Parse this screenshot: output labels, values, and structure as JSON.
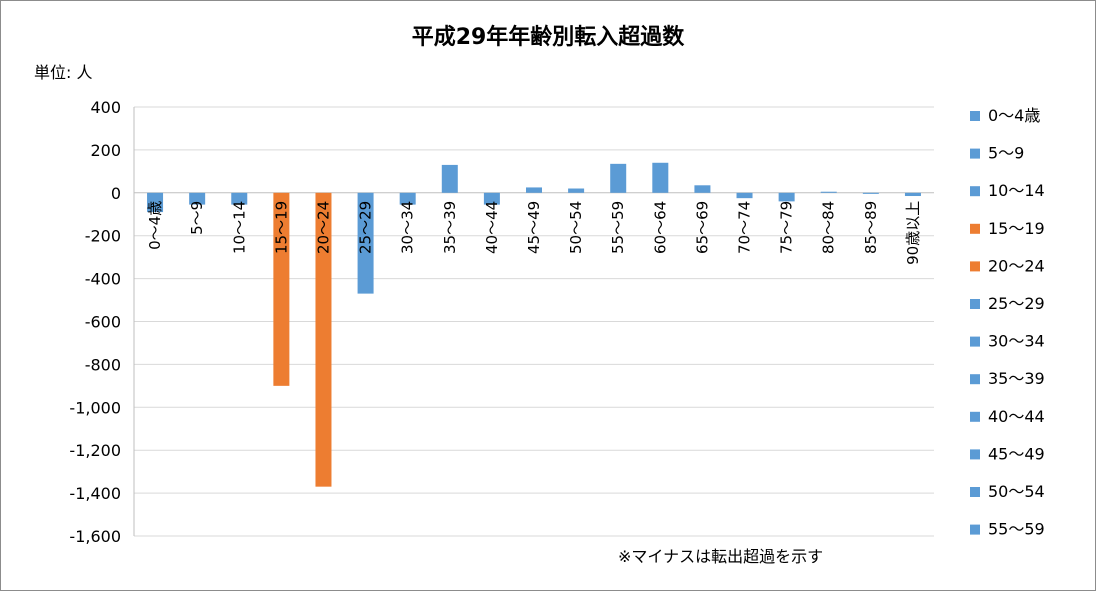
{
  "chart_data": {
    "type": "bar",
    "title": "平成29年年齢別転入超過数",
    "unit_label": "単位: 人",
    "note": "※マイナスは転出超過を示す",
    "categories": [
      "0～4歳",
      "5～9",
      "10～14",
      "15～19",
      "20～24",
      "25～29",
      "30～34",
      "35～39",
      "40～44",
      "45～49",
      "50～54",
      "55～59",
      "60～64",
      "65～69",
      "70～74",
      "75～79",
      "80～84",
      "85～89",
      "90歳以上"
    ],
    "values": [
      -90,
      -55,
      -55,
      -900,
      -1370,
      -470,
      -55,
      130,
      -55,
      25,
      20,
      135,
      140,
      35,
      -25,
      -40,
      5,
      -5,
      -15
    ],
    "colors": [
      "#5b9bd5",
      "#5b9bd5",
      "#5b9bd5",
      "#ed7d31",
      "#ed7d31",
      "#5b9bd5",
      "#5b9bd5",
      "#5b9bd5",
      "#5b9bd5",
      "#5b9bd5",
      "#5b9bd5",
      "#5b9bd5",
      "#5b9bd5",
      "#5b9bd5",
      "#5b9bd5",
      "#5b9bd5",
      "#5b9bd5",
      "#5b9bd5",
      "#5b9bd5"
    ],
    "ylim": [
      -1600,
      400
    ],
    "yticks": [
      400,
      200,
      0,
      -200,
      -400,
      -600,
      -800,
      -1000,
      -1200,
      -1400,
      -1600
    ],
    "ytick_labels": [
      "400",
      "200",
      "0",
      "-200",
      "-400",
      "-600",
      "-800",
      "-1,000",
      "-1,200",
      "-1,400",
      "-1,600"
    ],
    "grid": true,
    "legend_position": "right",
    "legend": [
      {
        "label": "0～4歳",
        "color": "#5b9bd5"
      },
      {
        "label": "5～9",
        "color": "#5b9bd5"
      },
      {
        "label": "10～14",
        "color": "#5b9bd5"
      },
      {
        "label": "15～19",
        "color": "#ed7d31"
      },
      {
        "label": "20～24",
        "color": "#ed7d31"
      },
      {
        "label": "25～29",
        "color": "#5b9bd5"
      },
      {
        "label": "30～34",
        "color": "#5b9bd5"
      },
      {
        "label": "35～39",
        "color": "#5b9bd5"
      },
      {
        "label": "40～44",
        "color": "#5b9bd5"
      },
      {
        "label": "45～49",
        "color": "#5b9bd5"
      },
      {
        "label": "50～54",
        "color": "#5b9bd5"
      },
      {
        "label": "55～59",
        "color": "#5b9bd5"
      }
    ]
  }
}
